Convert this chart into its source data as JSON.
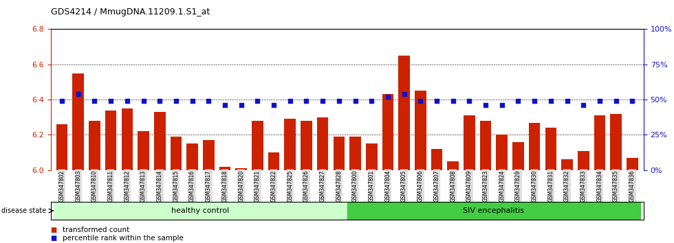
{
  "title": "GDS4214 / MmugDNA.11209.1.S1_at",
  "samples": [
    "GSM347802",
    "GSM347803",
    "GSM347810",
    "GSM347811",
    "GSM347812",
    "GSM347813",
    "GSM347814",
    "GSM347815",
    "GSM347816",
    "GSM347817",
    "GSM347818",
    "GSM347820",
    "GSM347821",
    "GSM347822",
    "GSM347825",
    "GSM347826",
    "GSM347827",
    "GSM347828",
    "GSM347800",
    "GSM347801",
    "GSM347804",
    "GSM347805",
    "GSM347806",
    "GSM347807",
    "GSM347808",
    "GSM347809",
    "GSM347823",
    "GSM347824",
    "GSM347829",
    "GSM347830",
    "GSM347831",
    "GSM347832",
    "GSM347833",
    "GSM347834",
    "GSM347835",
    "GSM347836"
  ],
  "bar_values": [
    6.26,
    6.55,
    6.28,
    6.34,
    6.35,
    6.22,
    6.33,
    6.19,
    6.15,
    6.17,
    6.02,
    6.01,
    6.28,
    6.1,
    6.29,
    6.28,
    6.3,
    6.19,
    6.19,
    6.15,
    6.43,
    6.65,
    6.45,
    6.12,
    6.05,
    6.31,
    6.28,
    6.2,
    6.16,
    6.27,
    6.24,
    6.06,
    6.11,
    6.31,
    6.32,
    6.07
  ],
  "percentile_values": [
    49,
    54,
    49,
    49,
    49,
    49,
    49,
    49,
    49,
    49,
    46,
    46,
    49,
    46,
    49,
    49,
    49,
    49,
    49,
    49,
    52,
    54,
    49,
    49,
    49,
    49,
    46,
    46,
    49,
    49,
    49,
    49,
    46,
    49,
    49,
    49
  ],
  "healthy_count": 18,
  "siv_count": 18,
  "ylim_left": [
    6.0,
    6.8
  ],
  "ylim_right": [
    0,
    100
  ],
  "yticks_left": [
    6.0,
    6.2,
    6.4,
    6.6,
    6.8
  ],
  "yticks_right": [
    0,
    25,
    50,
    75,
    100
  ],
  "bar_color": "#cc2200",
  "dot_color": "#1111cc",
  "healthy_bg": "#ccffcc",
  "siv_bg": "#44cc44",
  "tick_bg": "#dddddd"
}
